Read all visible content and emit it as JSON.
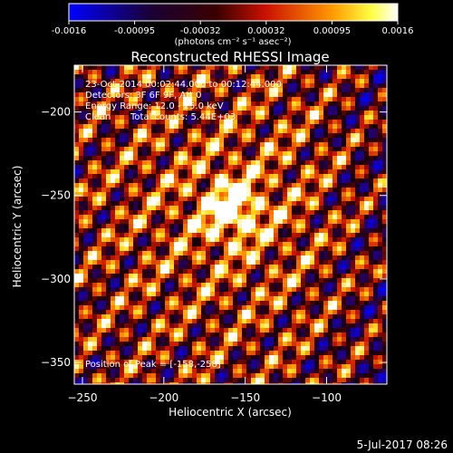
{
  "chart_data": {
    "type": "heatmap",
    "title": "Reconstructed RHESSI Image",
    "xlabel": "Heliocentric X (arcsec)",
    "ylabel": "Heliocentric Y (arcsec)",
    "xlim": [
      -255,
      -63
    ],
    "ylim": [
      -363,
      -172
    ],
    "x_ticks": [
      -250,
      -200,
      -150,
      -100
    ],
    "y_ticks": [
      -200,
      -250,
      -300,
      -350
    ],
    "colorbar": {
      "min": -0.0016,
      "max": 0.0016,
      "ticks": [
        "-0.0016",
        "-0.00095",
        "-0.00032",
        "0.00032",
        "0.00095",
        "0.0016"
      ],
      "units_label": "(photons cm⁻² s⁻¹ asec⁻²)",
      "colormap": [
        "#0000ff",
        "#000000",
        "#ff0000",
        "#ffff00",
        "#ffffff"
      ]
    },
    "annotations": {
      "time_range": "23-Oct-2014 00:02:44.000 to 00:12:44.000",
      "detectors": "Detectors: 3F 6F 9F, Att 0",
      "energy_range": "Energy Range: 12.0 - 25.0 keV",
      "clean": "Clean",
      "total_counts": "Total counts: 5.44E+03",
      "peak": "Position of Peak = [-158,-258]"
    },
    "peak_position": [
      -158,
      -258
    ],
    "footer_date": "5-Jul-2017 08:26"
  }
}
